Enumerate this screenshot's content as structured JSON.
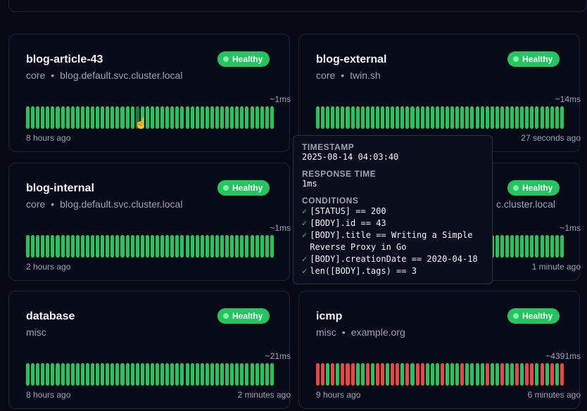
{
  "colors": {
    "success": "#22c55e",
    "failure": "#ef4444",
    "background": "#060914"
  },
  "cards": [
    {
      "name": "blog-article-43",
      "group": "core",
      "host": "blog.default.svc.cluster.local",
      "status": "Healthy",
      "response": "~1ms",
      "oldest": "8 hours ago",
      "newest": "",
      "pattern": "GGGGGGGGGGGGGGGGGGGGGGGGGGGGGGGGGGGGGGGGGGGGGGGGGG",
      "hover_index": 22
    },
    {
      "name": "blog-external",
      "group": "core",
      "host": "twin.sh",
      "status": "Healthy",
      "response": "~14ms",
      "oldest": "",
      "newest": "27 seconds ago",
      "pattern": "GGGGGGGGGGGGGGGGGGGGGGGGGGGGGGGGGGGGGGGGGGGGGGGGGG"
    },
    {
      "name": "blog-internal",
      "group": "core",
      "host": "blog.default.svc.cluster.local",
      "status": "Healthy",
      "response": "~1ms",
      "oldest": "2 hours ago",
      "newest": "",
      "pattern": "GGGGGGGGGGGGGGGGGGGGGGGGGGGGGGGGGGGGGGGGGGGGGGGGGG"
    },
    {
      "name": "",
      "group": "",
      "host": "",
      "status": "Healthy",
      "response": "~1ms",
      "oldest": "",
      "newest": "1 minute ago",
      "pattern": "GGGGGGGGGGGGGGGGGGGGGGGGGGGGGGGGGGGGGGGGGGGGGGGGGG",
      "partial_host": "c.cluster.local"
    },
    {
      "name": "database",
      "group": "misc",
      "host": "",
      "status": "Healthy",
      "response": "~21ms",
      "oldest": "8 hours ago",
      "newest": "2 minutes ago",
      "pattern": "GGGGGGGGGGGGGGGGGGGGGGGGGGGGGGGGGGGGGGGGGGGGGGGGGG"
    },
    {
      "name": "icmp",
      "group": "misc",
      "host": "example.org",
      "status": "Healthy",
      "response": "~4391ms",
      "oldest": "9 hours ago",
      "newest": "6 minutes ago",
      "pattern": "RRGRGRRRGGRGRRGRRGRGRRGGGRGGGRGGGGRGGRGGRGRRGRGRGR"
    }
  ],
  "tooltip": {
    "timestamp_label": "TIMESTAMP",
    "timestamp": "2025-08-14 04:03:40",
    "response_label": "RESPONSE TIME",
    "response": "1ms",
    "conditions_label": "CONDITIONS",
    "check": "✓",
    "conditions": [
      "[STATUS] == 200",
      "[BODY].id == 43",
      "[BODY].title == Writing a Simple Reverse Proxy in Go",
      "[BODY].creationDate == 2020-04-18",
      "len([BODY].tags) == 3"
    ]
  }
}
